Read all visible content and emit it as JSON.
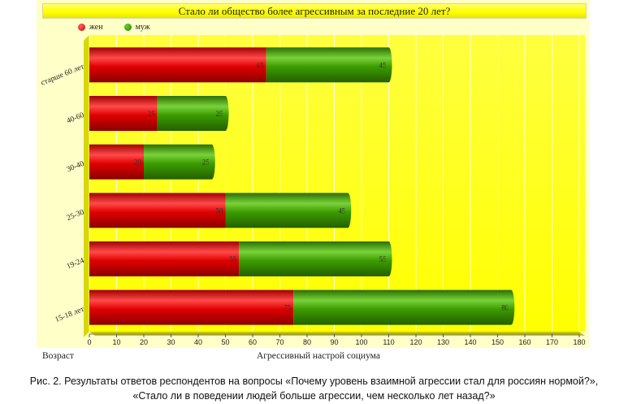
{
  "chart_data": {
    "type": "bar",
    "orientation": "horizontal",
    "stacked": true,
    "title": "Стало ли общество более агрессивным за последние 20 лет?",
    "categories": [
      "старше 60 лет",
      "40-60",
      "30-40",
      "25-30",
      "19-24",
      "15-18 лет"
    ],
    "series": [
      {
        "name": "жен",
        "color": "#dd0000",
        "values": [
          65,
          25,
          20,
          50,
          55,
          75
        ]
      },
      {
        "name": "муж",
        "color": "#339900",
        "values": [
          45,
          25,
          25,
          45,
          55,
          80
        ]
      }
    ],
    "x_ticks": [
      0,
      10,
      20,
      30,
      40,
      50,
      60,
      70,
      80,
      90,
      100,
      110,
      120,
      130,
      140,
      150,
      160,
      170,
      180
    ],
    "xlim": [
      0,
      180
    ],
    "xlabel": "Агрессивный настрой социума",
    "ylabel": "Возраст",
    "legend_position": "top-left",
    "grid": true
  },
  "caption": {
    "line1": "Рис. 2. Результаты ответов респондентов на вопросы «Почему уровень взаимной агрессии стал для россиян нормой?»,",
    "line2": "«Стало ли в поведении людей больше агрессии, чем несколько лет назад?»"
  }
}
